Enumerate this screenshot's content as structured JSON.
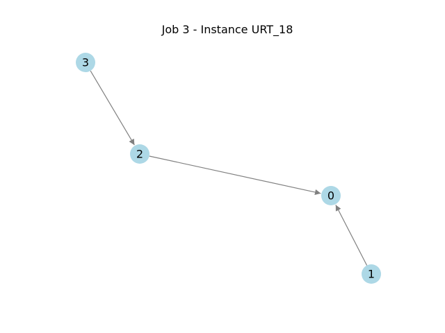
{
  "title": "Job 3 - Instance URT_18",
  "colors": {
    "node_fill": "#add8e6",
    "edge_stroke": "#808080",
    "label": "#000000",
    "background": "#ffffff"
  },
  "nodes": [
    {
      "id": "0",
      "label": "0"
    },
    {
      "id": "1",
      "label": "1"
    },
    {
      "id": "2",
      "label": "2"
    },
    {
      "id": "3",
      "label": "3"
    }
  ],
  "edges": [
    {
      "from": "3",
      "to": "2"
    },
    {
      "from": "2",
      "to": "0"
    },
    {
      "from": "1",
      "to": "0"
    }
  ]
}
